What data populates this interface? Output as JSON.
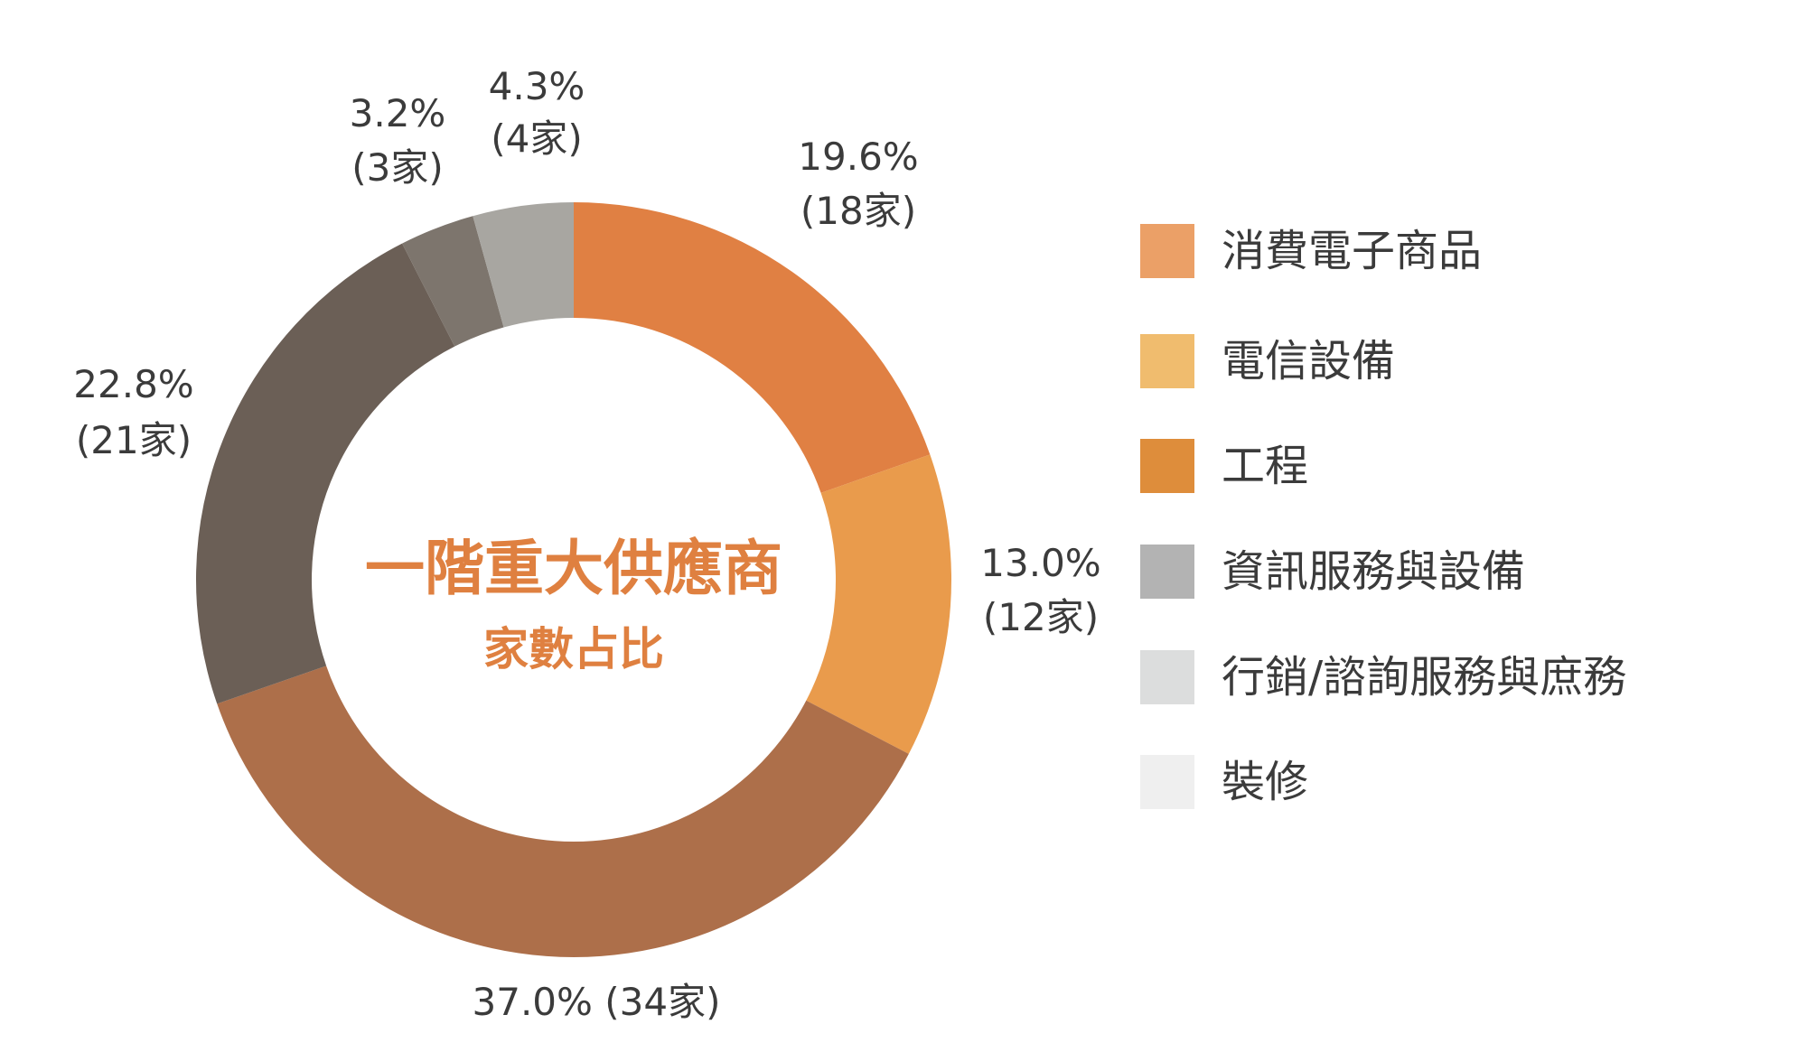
{
  "chart_data": {
    "type": "pie",
    "title": "一階重大供應商",
    "subtitle": "家數占比",
    "slices": [
      {
        "value": 19.6,
        "count_label": "(18家)",
        "pct_label": "19.6%",
        "color": "#e08043"
      },
      {
        "value": 13.0,
        "count_label": "(12家)",
        "pct_label": "13.0%",
        "color": "#e99b4c"
      },
      {
        "value": 37.0,
        "count_label": "(34家)",
        "pct_label": "37.0%",
        "color": "#ad6f4a"
      },
      {
        "value": 22.8,
        "count_label": "(21家)",
        "pct_label": "22.8%",
        "color": "#6b5f56"
      },
      {
        "value": 3.2,
        "count_label": "(3家)",
        "pct_label": "3.2%",
        "color": "#7d756d"
      },
      {
        "value": 4.3,
        "count_label": "(4家)",
        "pct_label": "4.3%",
        "color": "#a8a6a1"
      }
    ],
    "legend": [
      {
        "label": "消費電子商品",
        "color": "#eba067"
      },
      {
        "label": "電信設備",
        "color": "#f0bc6e"
      },
      {
        "label": "工程",
        "color": "#de8d3b"
      },
      {
        "label": "資訊服務與設備",
        "color": "#b3b3b3"
      },
      {
        "label": "行銷/諮詢服務與庶務",
        "color": "#dcdddd"
      },
      {
        "label": "裝修",
        "color": "#efefef"
      }
    ],
    "legend_placement": "right"
  }
}
